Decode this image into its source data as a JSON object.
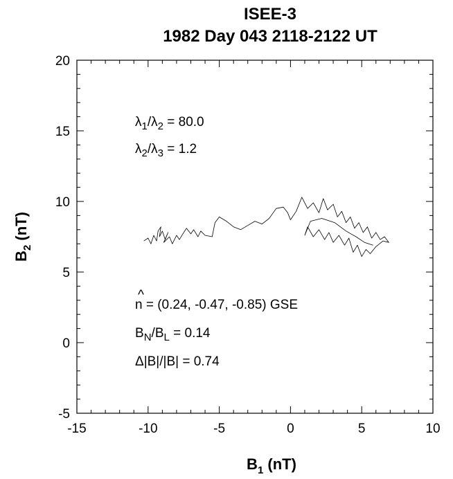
{
  "chart_data": {
    "type": "line",
    "title": "ISEE-3",
    "subtitle": "1982 Day 043  2118-2122 UT",
    "xlabel": {
      "main": "B",
      "sub": "1",
      "unit": " (nT)"
    },
    "ylabel": {
      "main": "B",
      "sub": "2",
      "unit": " (nT)"
    },
    "xlim": [
      -15,
      10
    ],
    "ylim": [
      -5,
      20
    ],
    "xticks": [
      -15,
      -10,
      -5,
      0,
      5,
      10
    ],
    "yticks": [
      -5,
      0,
      5,
      10,
      15,
      20
    ],
    "xtick_labels": [
      "-15",
      "-10",
      "-5",
      "0",
      "5",
      "10"
    ],
    "ytick_labels": [
      "-5",
      "0",
      "5",
      "10",
      "15",
      "20"
    ],
    "grid": false,
    "series": [
      {
        "values": [
          [
            -10.3,
            7.2
          ],
          [
            -10.0,
            7.4
          ],
          [
            -9.8,
            7.0
          ],
          [
            -9.6,
            7.6
          ],
          [
            -9.4,
            7.2
          ],
          [
            -9.3,
            7.9
          ],
          [
            -9.1,
            8.2
          ],
          [
            -9.2,
            7.5
          ],
          [
            -9.0,
            7.9
          ],
          [
            -8.8,
            7.3
          ],
          [
            -8.6,
            7.8
          ],
          [
            -8.9,
            7.1
          ],
          [
            -8.5,
            7.5
          ],
          [
            -8.3,
            7.0
          ],
          [
            -8.0,
            7.6
          ],
          [
            -7.8,
            7.3
          ],
          [
            -7.5,
            7.8
          ],
          [
            -7.3,
            8.1
          ],
          [
            -7.0,
            7.7
          ],
          [
            -6.8,
            8.0
          ],
          [
            -6.5,
            7.5
          ],
          [
            -6.3,
            7.9
          ],
          [
            -6.0,
            7.6
          ],
          [
            -5.5,
            7.5
          ],
          [
            -5.3,
            8.5
          ],
          [
            -5.0,
            8.9
          ],
          [
            -4.5,
            8.6
          ],
          [
            -4.0,
            8.2
          ],
          [
            -3.5,
            8.0
          ],
          [
            -3.0,
            8.3
          ],
          [
            -2.5,
            8.6
          ],
          [
            -2.0,
            8.4
          ],
          [
            -1.5,
            8.8
          ],
          [
            -1.0,
            9.5
          ],
          [
            -0.5,
            9.6
          ],
          [
            -0.2,
            9.2
          ],
          [
            0.0,
            8.7
          ],
          [
            0.4,
            9.3
          ],
          [
            0.8,
            10.3
          ],
          [
            1.2,
            9.5
          ],
          [
            1.6,
            9.9
          ],
          [
            2.0,
            9.2
          ],
          [
            2.3,
            10.2
          ],
          [
            2.6,
            9.4
          ],
          [
            3.0,
            9.8
          ],
          [
            3.3,
            8.9
          ],
          [
            3.6,
            9.3
          ],
          [
            3.9,
            8.5
          ],
          [
            4.2,
            8.9
          ],
          [
            4.5,
            8.1
          ],
          [
            4.8,
            8.5
          ],
          [
            5.1,
            7.8
          ],
          [
            5.4,
            8.2
          ],
          [
            5.7,
            7.4
          ],
          [
            6.0,
            7.8
          ],
          [
            6.3,
            7.3
          ],
          [
            6.6,
            7.5
          ],
          [
            6.9,
            7.1
          ],
          [
            6.5,
            7.2
          ],
          [
            6.0,
            6.8
          ],
          [
            5.6,
            6.3
          ],
          [
            5.3,
            6.6
          ],
          [
            5.0,
            6.1
          ],
          [
            4.7,
            6.9
          ],
          [
            4.4,
            6.4
          ],
          [
            4.1,
            7.4
          ],
          [
            3.8,
            6.9
          ],
          [
            3.4,
            7.6
          ],
          [
            3.0,
            7.1
          ],
          [
            2.7,
            7.8
          ],
          [
            2.4,
            7.3
          ],
          [
            2.0,
            8.0
          ],
          [
            1.6,
            7.5
          ],
          [
            1.2,
            8.2
          ],
          [
            1.0,
            7.6
          ],
          [
            1.4,
            8.6
          ],
          [
            2.2,
            8.8
          ],
          [
            3.1,
            8.5
          ],
          [
            3.9,
            7.9
          ],
          [
            4.6,
            7.5
          ],
          [
            5.2,
            7.1
          ],
          [
            5.8,
            6.9
          ]
        ]
      }
    ],
    "annotations": {
      "lambda_12": {
        "sym1": "λ",
        "sub1": "1",
        "slash": "/",
        "sym2": "λ",
        "sub2": "2",
        "value": " = 80.0"
      },
      "lambda_23": {
        "sym1": "λ",
        "sub1": "2",
        "slash": "/",
        "sym2": "λ",
        "sub2": "3",
        "value": " = 1.2"
      },
      "normal": {
        "hat": "^",
        "symbol": "n",
        "value": " = (0.24, -0.47, -0.85) GSE"
      },
      "bn_bl": {
        "sym1": "B",
        "sub1": "N",
        "slash": "/",
        "sym2": "B",
        "sub2": "L",
        "value": " = 0.14"
      },
      "delta_b": {
        "text": "Δ|B|/|B| = 0.74"
      }
    }
  }
}
